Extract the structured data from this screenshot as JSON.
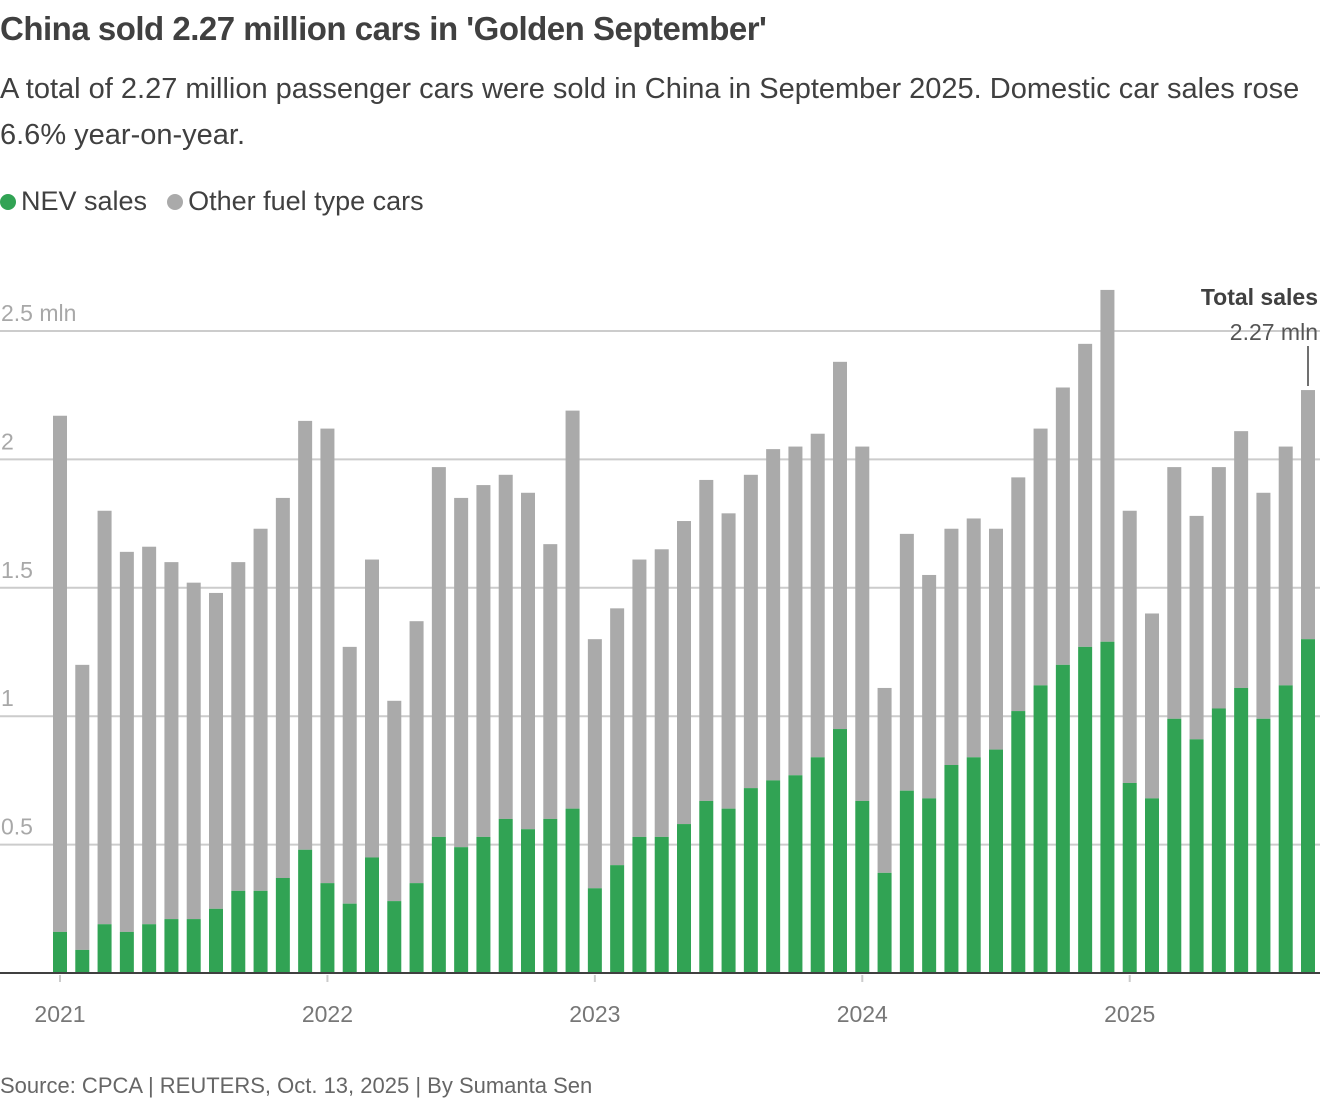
{
  "header": {
    "title": "China sold 2.27 million cars in 'Golden September'",
    "subtitle": "A total of 2.27 million passenger cars were sold in China in September 2025. Domestic car sales rose 6.6% year-on-year."
  },
  "legend": [
    {
      "label": "NEV sales",
      "color": "#31a354"
    },
    {
      "label": "Other fuel type cars",
      "color": "#aaaaaa"
    }
  ],
  "footer": {
    "source": "Source: CPCA | REUTERS, Oct. 13, 2025 | By Sumanta Sen"
  },
  "chart_data": {
    "type": "bar",
    "stacked": true,
    "title": "China sold 2.27 million cars in 'Golden September'",
    "xlabel": "",
    "ylabel": "mln",
    "ylim": [
      0,
      2.5
    ],
    "yticks": [
      0.5,
      1,
      1.5,
      2,
      2.5
    ],
    "ytick_labels": [
      "0.5",
      "1",
      "1.5",
      "2",
      "2.5 mln"
    ],
    "grid": true,
    "legend_position": "top-left",
    "x_tick_labels": [
      "2021",
      "2022",
      "2023",
      "2024",
      "2025"
    ],
    "x_tick_indices": [
      0,
      12,
      24,
      36,
      48
    ],
    "categories": [
      "Jan 2021",
      "Feb 2021",
      "Mar 2021",
      "Apr 2021",
      "May 2021",
      "Jun 2021",
      "Jul 2021",
      "Aug 2021",
      "Sep 2021",
      "Oct 2021",
      "Nov 2021",
      "Dec 2021",
      "Jan 2022",
      "Feb 2022",
      "Mar 2022",
      "Apr 2022",
      "May 2022",
      "Jun 2022",
      "Jul 2022",
      "Aug 2022",
      "Sep 2022",
      "Oct 2022",
      "Nov 2022",
      "Dec 2022",
      "Jan 2023",
      "Feb 2023",
      "Mar 2023",
      "Apr 2023",
      "May 2023",
      "Jun 2023",
      "Jul 2023",
      "Aug 2023",
      "Sep 2023",
      "Oct 2023",
      "Nov 2023",
      "Dec 2023",
      "Jan 2024",
      "Feb 2024",
      "Mar 2024",
      "Apr 2024",
      "May 2024",
      "Jun 2024",
      "Jul 2024",
      "Aug 2024",
      "Sep 2024",
      "Oct 2024",
      "Nov 2024",
      "Dec 2024",
      "Jan 2025",
      "Feb 2025",
      "Mar 2025",
      "Apr 2025",
      "May 2025",
      "Jun 2025",
      "Jul 2025",
      "Aug 2025",
      "Sep 2025"
    ],
    "series": [
      {
        "name": "NEV sales",
        "color": "#31a354",
        "values": [
          0.16,
          0.09,
          0.19,
          0.16,
          0.19,
          0.21,
          0.21,
          0.25,
          0.32,
          0.32,
          0.37,
          0.48,
          0.35,
          0.27,
          0.45,
          0.28,
          0.35,
          0.53,
          0.49,
          0.53,
          0.6,
          0.56,
          0.6,
          0.64,
          0.33,
          0.42,
          0.53,
          0.53,
          0.58,
          0.67,
          0.64,
          0.72,
          0.75,
          0.77,
          0.84,
          0.95,
          0.67,
          0.39,
          0.71,
          0.68,
          0.81,
          0.84,
          0.87,
          1.02,
          1.12,
          1.2,
          1.27,
          1.29,
          0.74,
          0.68,
          0.99,
          0.91,
          1.03,
          1.11,
          0.99,
          1.12,
          1.3
        ]
      },
      {
        "name": "Other fuel type cars",
        "color": "#aaaaaa",
        "values": [
          2.01,
          1.11,
          1.61,
          1.48,
          1.47,
          1.39,
          1.31,
          1.23,
          1.28,
          1.41,
          1.48,
          1.67,
          1.77,
          1.0,
          1.16,
          0.78,
          1.02,
          1.44,
          1.36,
          1.37,
          1.34,
          1.31,
          1.07,
          1.55,
          0.97,
          1.0,
          1.08,
          1.12,
          1.18,
          1.25,
          1.15,
          1.22,
          1.29,
          1.28,
          1.26,
          1.43,
          1.38,
          0.72,
          1.0,
          0.87,
          0.92,
          0.93,
          0.86,
          0.91,
          1.0,
          1.08,
          1.18,
          1.37,
          1.06,
          0.72,
          0.98,
          0.87,
          0.94,
          1.0,
          0.88,
          0.93,
          0.97
        ]
      }
    ],
    "totals": [
      2.17,
      1.2,
      1.8,
      1.64,
      1.66,
      1.6,
      1.52,
      1.48,
      1.6,
      1.73,
      1.85,
      2.15,
      2.12,
      1.27,
      1.61,
      1.06,
      1.37,
      1.97,
      1.85,
      1.9,
      1.94,
      1.87,
      1.67,
      2.19,
      1.3,
      1.42,
      1.61,
      1.65,
      1.76,
      1.92,
      1.79,
      1.94,
      2.04,
      2.05,
      2.1,
      2.38,
      2.05,
      1.11,
      1.71,
      1.55,
      1.73,
      1.77,
      1.73,
      1.93,
      2.12,
      2.28,
      2.45,
      2.66,
      1.8,
      1.4,
      1.97,
      1.78,
      1.97,
      2.11,
      1.87,
      2.05,
      2.27
    ],
    "annotation": {
      "title": "Total sales",
      "value": "2.27 mln",
      "index": 56
    }
  }
}
